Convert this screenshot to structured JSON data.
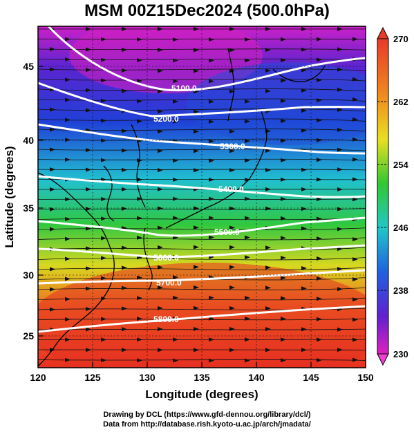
{
  "title": "MSM 00Z15Dec2024 (500.0hPa)",
  "axes": {
    "xlabel": "Longitude (degrees)",
    "ylabel": "Latitude  (degrees)",
    "xticks": [
      "120",
      "125",
      "130",
      "135",
      "140",
      "145",
      "150"
    ],
    "yticks": [
      "25",
      "30",
      "35",
      "40",
      "45"
    ]
  },
  "colorbar": {
    "ticks": [
      "270",
      "262",
      "254",
      "246",
      "238",
      "230"
    ],
    "colors": [
      "#e83a2a",
      "#f08a1e",
      "#e8e020",
      "#30c830",
      "#20c8c8",
      "#2060e0",
      "#6020d0",
      "#e020c0"
    ]
  },
  "contours": {
    "labels": [
      "5100.0",
      "5200.0",
      "5300.0",
      "5400.0",
      "5500.0",
      "5600.0",
      "5700.0",
      "5800.0"
    ]
  },
  "credits": {
    "line1": "Drawing by DCL (https://www.gfd-dennou.org/library/dcl/)",
    "line2": "Data from http://database.rish.kyoto-u.ac.jp/arch/jmadata/"
  }
}
